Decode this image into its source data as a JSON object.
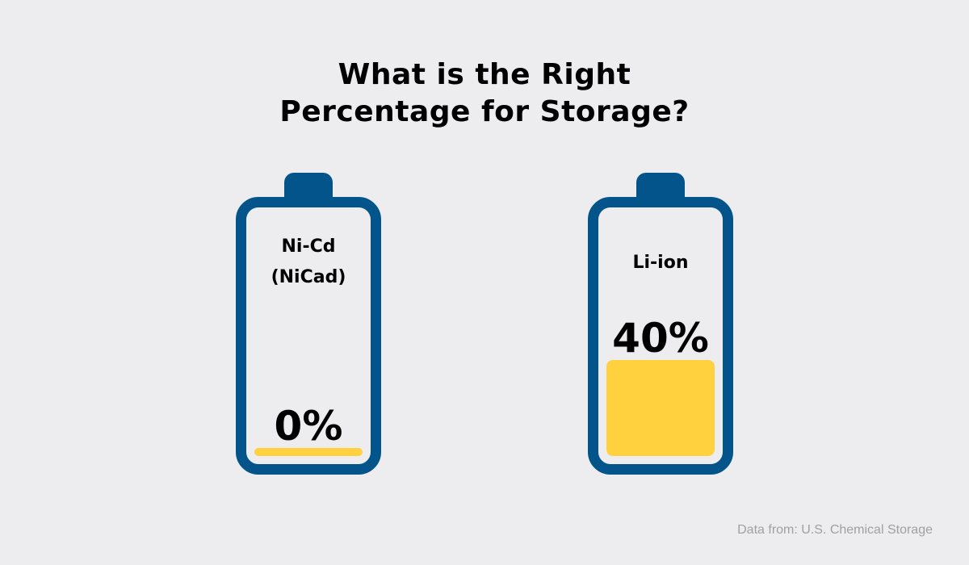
{
  "title_lines": [
    "What is the Right",
    "Percentage for Storage?"
  ],
  "footer": "Data from: U.S. Chemical Storage",
  "colors": {
    "battery_outline": "#02548a",
    "fill": "#ffd13f",
    "background": "#ededf0"
  },
  "chart_data": {
    "type": "bar",
    "title": "What is the Right Percentage for Storage?",
    "categories": [
      "Ni-Cd (NiCad)",
      "Li-ion"
    ],
    "values": [
      0,
      40
    ],
    "unit": "%",
    "ylim": [
      0,
      100
    ],
    "batteries": [
      {
        "label_lines": [
          "Ni-Cd",
          "(NiCad)"
        ],
        "value": 0,
        "value_label": "0%"
      },
      {
        "label_lines": [
          "Li-ion"
        ],
        "value": 40,
        "value_label": "40%"
      }
    ]
  }
}
